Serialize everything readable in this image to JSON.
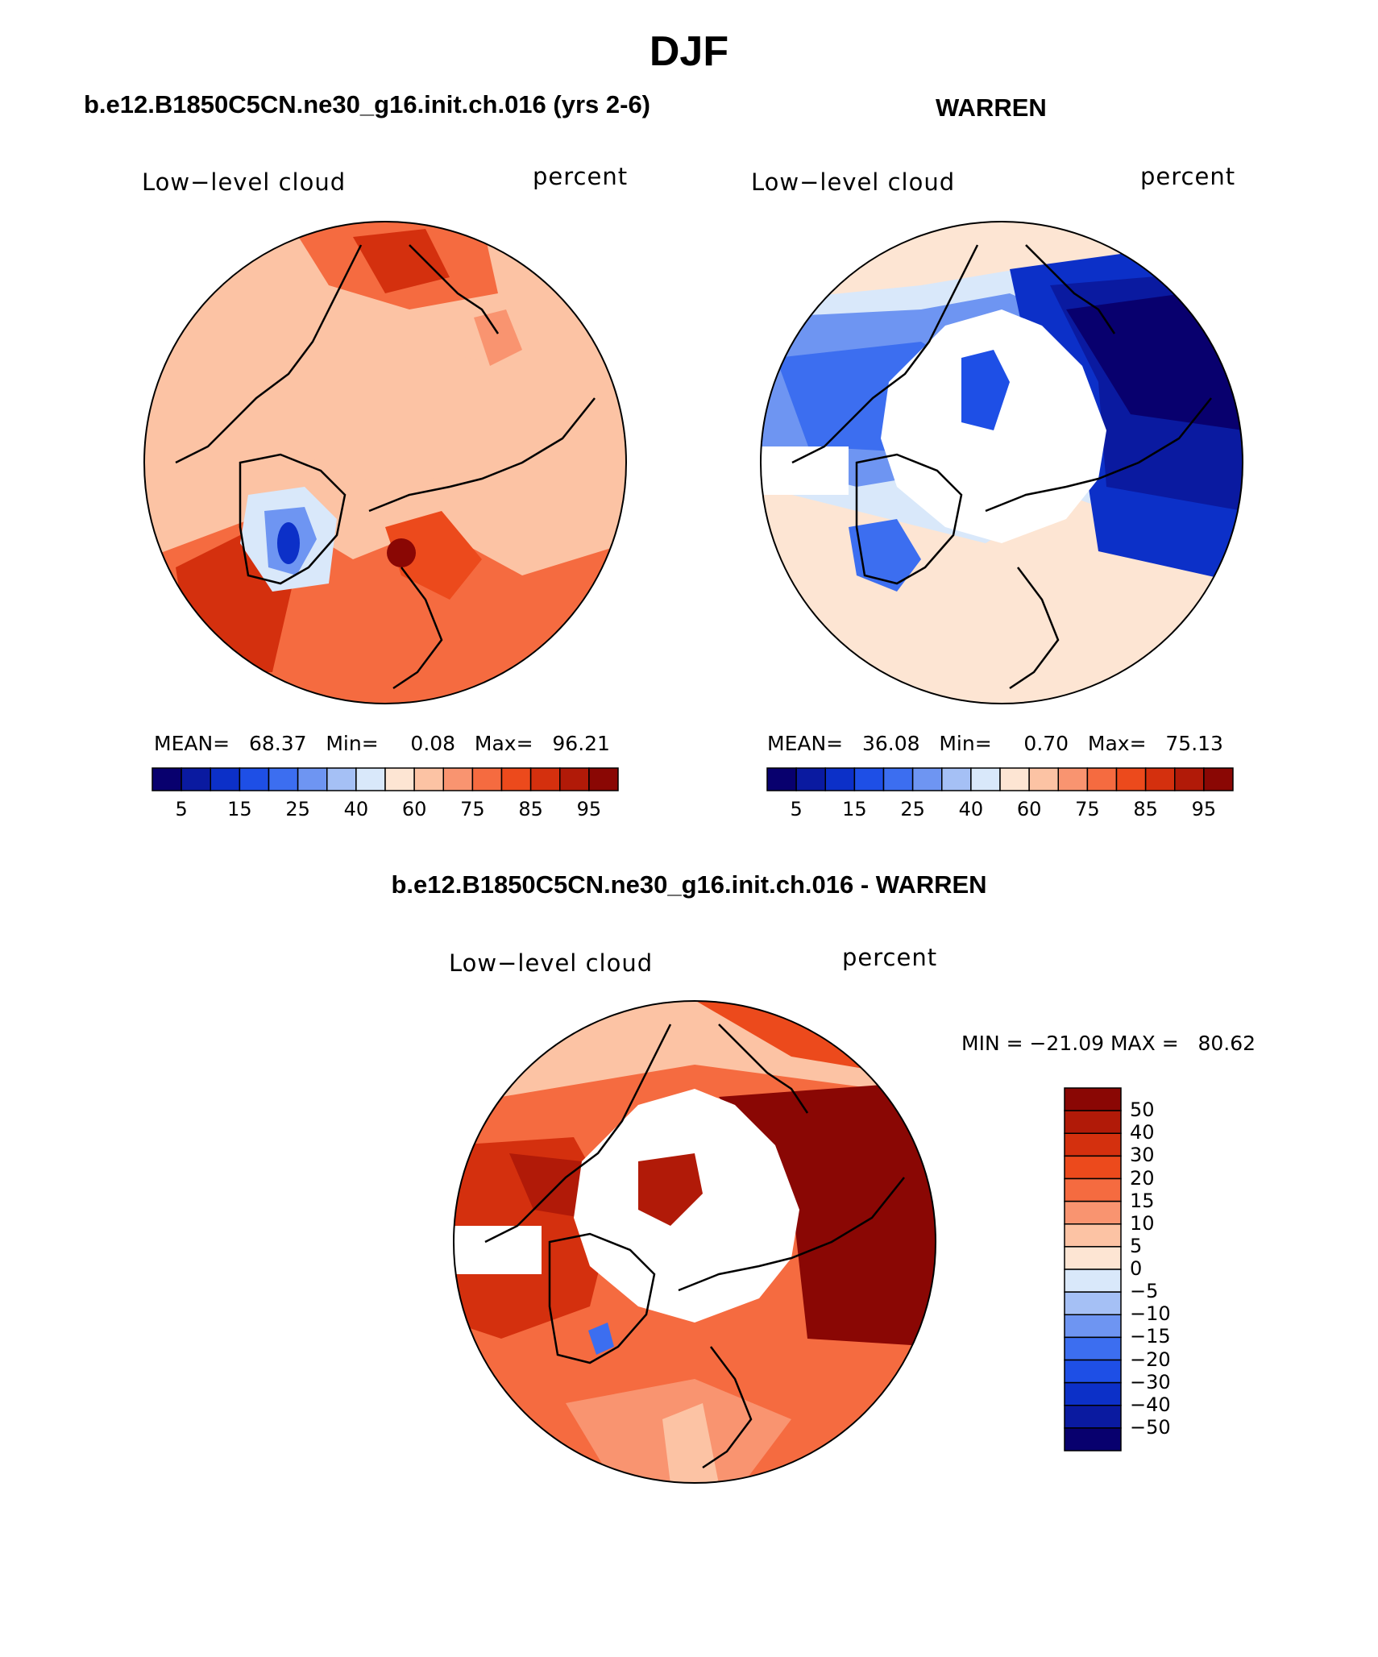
{
  "page_title": "DJF",
  "panels": [
    {
      "subtitle": "b.e12.B1850C5CN.ne30_g16.init.ch.016 (yrs 2-6)",
      "left_label": "Low−level cloud",
      "right_label": "percent",
      "stats": "MEAN=   68.37   Min=     0.08   Max=   96.21",
      "colorbar_ticks": [
        "5",
        "15",
        "25",
        "40",
        "60",
        "75",
        "85",
        "95"
      ]
    },
    {
      "subtitle": "WARREN",
      "left_label": "Low−level cloud",
      "right_label": "percent",
      "stats": "MEAN=   36.08   Min=     0.70   Max=   75.13",
      "colorbar_ticks": [
        "5",
        "15",
        "25",
        "40",
        "60",
        "75",
        "85",
        "95"
      ]
    },
    {
      "subtitle": "b.e12.B1850C5CN.ne30_g16.init.ch.016 - WARREN",
      "left_label": "Low−level cloud",
      "right_label": "percent",
      "stats": "MIN = −21.09 MAX =   80.62",
      "colorbar_ticks": [
        "50",
        "40",
        "30",
        "20",
        "15",
        "10",
        "5",
        "0",
        "−5",
        "−10",
        "−15",
        "−20",
        "−30",
        "−40",
        "−50"
      ]
    }
  ],
  "colors": {
    "abs_scale": [
      "#08006e",
      "#0a1aa0",
      "#0c30c8",
      "#1e4fe6",
      "#3c6ef0",
      "#6e95f2",
      "#a5c0f5",
      "#d9e8fa",
      "#fde5d3",
      "#fcc3a4",
      "#f99470",
      "#f56b40",
      "#ec4a1c",
      "#d4300e",
      "#b11a08",
      "#8a0704"
    ],
    "diff_scale": [
      "#8a0704",
      "#b11a08",
      "#d4300e",
      "#ec4a1c",
      "#f56b40",
      "#f99470",
      "#fcc3a4",
      "#fde5d3",
      "#d9e8fa",
      "#a5c0f5",
      "#6e95f2",
      "#3c6ef0",
      "#1e4fe6",
      "#0c30c8",
      "#0a1aa0",
      "#08006e"
    ]
  }
}
